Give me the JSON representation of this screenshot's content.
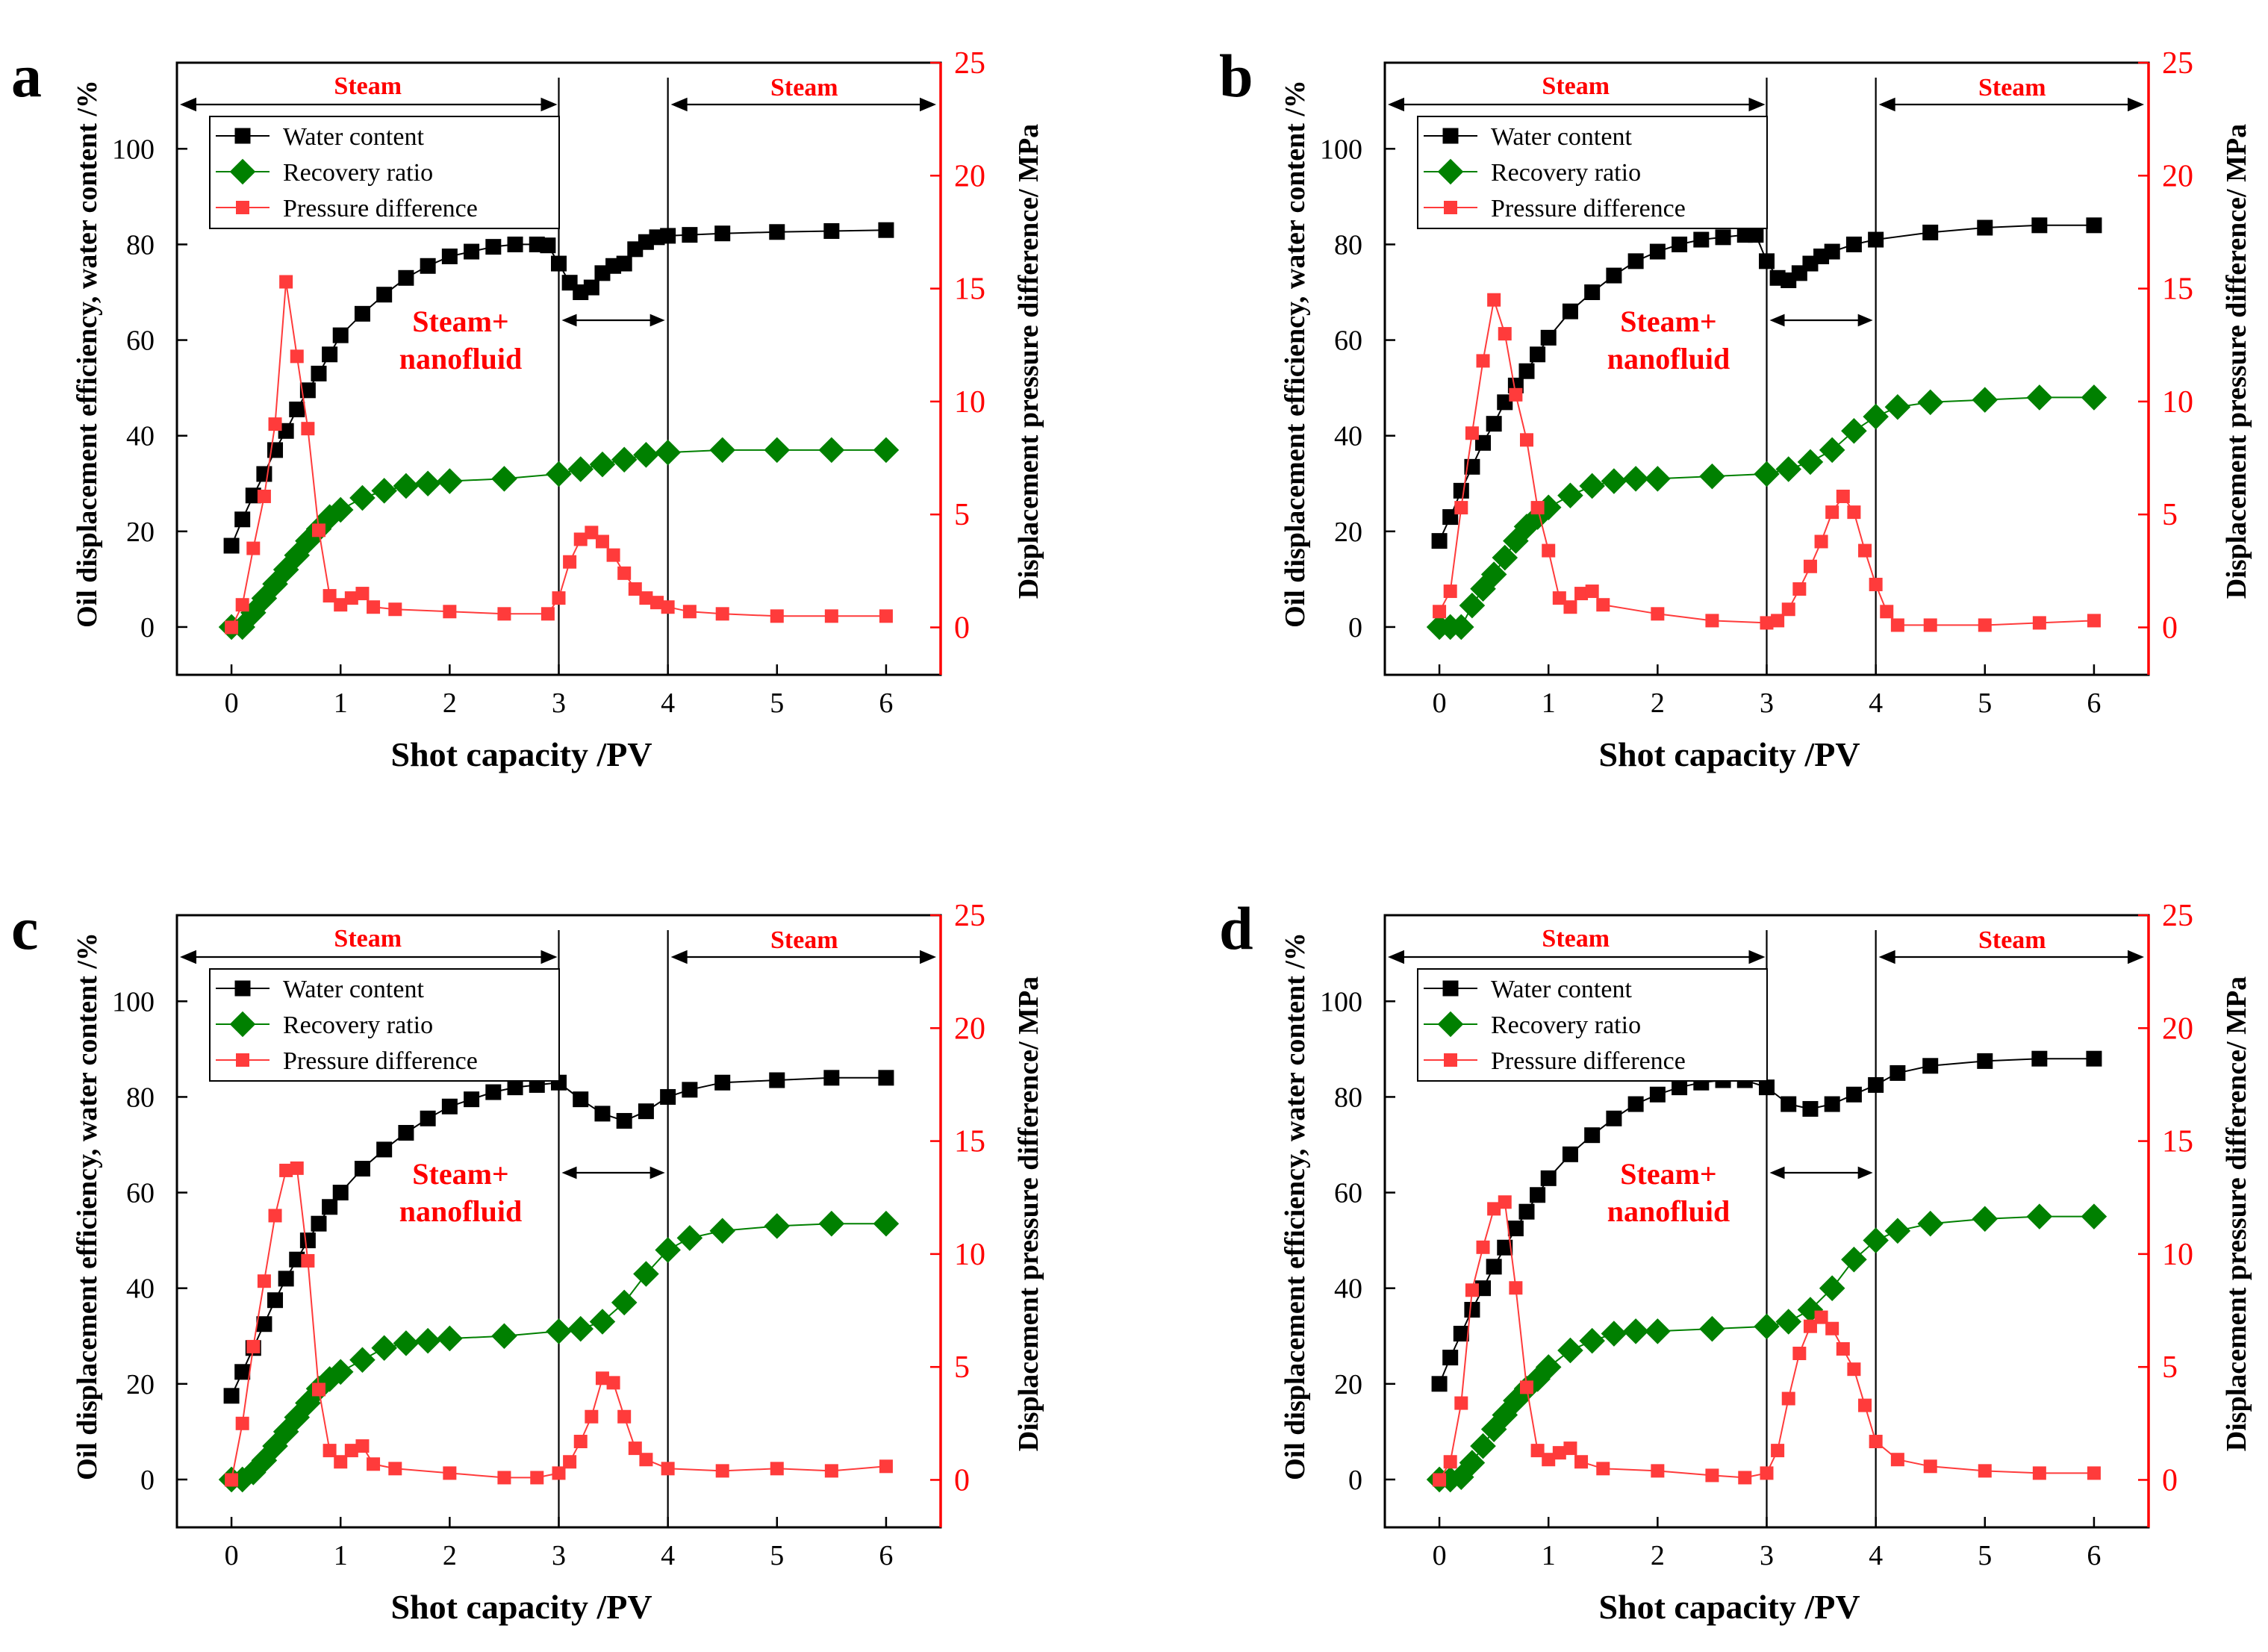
{
  "figure": {
    "x_label": "Shot capacity /PV",
    "y_left_label": "Oil displacement efficiency, water content /%",
    "y_right_label": "Displacement pressure difference/ MPa",
    "legend": [
      "Water content",
      "Recovery ratio",
      "Pressure difference"
    ],
    "annotation_steam": "Steam",
    "annotation_steam_nano": [
      "Steam+",
      "nanofluid"
    ],
    "colors": {
      "water": "#000000",
      "recovery": "#008000",
      "pressure": "#ff3b3b",
      "right_axis": "#ff0000",
      "annotation": "#ff0000"
    }
  },
  "chart_data": [
    {
      "type": "line",
      "panel": "a",
      "xlabel": "Shot capacity /PV",
      "ylabel": "Oil displacement efficiency, water content /%",
      "y2label": "Displacement pressure difference/ MPa",
      "xlim": [
        -0.5,
        6.5
      ],
      "ylim": [
        -10,
        118
      ],
      "y2lim": [
        -2.1,
        25
      ],
      "xticks": [
        0,
        1,
        2,
        3,
        4,
        5,
        6
      ],
      "yticks": [
        0,
        20,
        40,
        60,
        80,
        100
      ],
      "y2ticks": [
        0,
        5,
        10,
        15,
        20,
        25
      ],
      "injection_boundaries": [
        3,
        4
      ],
      "series": [
        {
          "name": "Water content",
          "axis": "left",
          "x": [
            0,
            0.1,
            0.2,
            0.3,
            0.4,
            0.5,
            0.6,
            0.7,
            0.8,
            0.9,
            1.0,
            1.2,
            1.4,
            1.6,
            1.8,
            2.0,
            2.2,
            2.4,
            2.6,
            2.8,
            2.9,
            3.0,
            3.1,
            3.2,
            3.3,
            3.4,
            3.5,
            3.6,
            3.7,
            3.8,
            3.9,
            4.0,
            4.2,
            4.5,
            5.0,
            5.5,
            6.0
          ],
          "values": [
            17,
            22.5,
            27.5,
            32,
            37,
            41,
            45.5,
            49.5,
            53,
            57,
            61,
            65.5,
            69.5,
            73,
            75.5,
            77.5,
            78.5,
            79.5,
            80,
            80,
            79.8,
            76,
            72,
            70,
            71,
            74,
            75.5,
            76,
            79,
            80.5,
            81.5,
            81.8,
            82,
            82.3,
            82.6,
            82.8,
            83
          ]
        },
        {
          "name": "Recovery ratio",
          "axis": "left",
          "x": [
            0,
            0.1,
            0.2,
            0.3,
            0.4,
            0.5,
            0.6,
            0.7,
            0.8,
            0.9,
            1.0,
            1.2,
            1.4,
            1.6,
            1.8,
            2.0,
            2.5,
            3.0,
            3.2,
            3.4,
            3.6,
            3.8,
            4.0,
            4.5,
            5.0,
            5.5,
            6.0
          ],
          "values": [
            0,
            0,
            3,
            6,
            9,
            12,
            15,
            18,
            20.5,
            23,
            24.5,
            27,
            28.5,
            29.5,
            30,
            30.5,
            31,
            32,
            33,
            34,
            35,
            36,
            36.5,
            37,
            37,
            37,
            37
          ]
        },
        {
          "name": "Pressure difference",
          "axis": "right",
          "x": [
            0,
            0.1,
            0.2,
            0.3,
            0.4,
            0.5,
            0.6,
            0.7,
            0.8,
            0.9,
            1.0,
            1.1,
            1.2,
            1.3,
            1.5,
            2.0,
            2.5,
            2.9,
            3.0,
            3.1,
            3.2,
            3.3,
            3.4,
            3.5,
            3.6,
            3.7,
            3.8,
            3.9,
            4.0,
            4.2,
            4.5,
            5.0,
            5.5,
            6.0
          ],
          "values": [
            0,
            1,
            3.5,
            5.8,
            9,
            15.3,
            12,
            8.8,
            4.3,
            1.4,
            1.0,
            1.3,
            1.5,
            0.9,
            0.8,
            0.7,
            0.6,
            0.6,
            1.3,
            2.9,
            3.9,
            4.2,
            3.8,
            3.2,
            2.4,
            1.7,
            1.3,
            1.1,
            0.9,
            0.7,
            0.6,
            0.5,
            0.5,
            0.5
          ]
        }
      ]
    },
    {
      "type": "line",
      "panel": "b",
      "xlabel": "Shot capacity /PV",
      "ylabel": "Oil displacement efficiency, water content /%",
      "y2label": "Displacement pressure difference/ MPa",
      "xlim": [
        -0.5,
        6.5
      ],
      "ylim": [
        -10,
        118
      ],
      "y2lim": [
        -2.1,
        25
      ],
      "xticks": [
        0,
        1,
        2,
        3,
        4,
        5,
        6
      ],
      "yticks": [
        0,
        20,
        40,
        60,
        80,
        100
      ],
      "y2ticks": [
        0,
        5,
        10,
        15,
        20,
        25
      ],
      "injection_boundaries": [
        3,
        4
      ],
      "series": [
        {
          "name": "Water content",
          "axis": "left",
          "x": [
            0,
            0.1,
            0.2,
            0.3,
            0.4,
            0.5,
            0.6,
            0.7,
            0.8,
            0.9,
            1.0,
            1.2,
            1.4,
            1.6,
            1.8,
            2.0,
            2.2,
            2.4,
            2.6,
            2.8,
            2.9,
            3.0,
            3.1,
            3.2,
            3.3,
            3.4,
            3.5,
            3.6,
            3.8,
            4.0,
            4.5,
            5.0,
            5.5,
            6.0
          ],
          "values": [
            18,
            23,
            28.5,
            33.5,
            38.5,
            42.5,
            47,
            50.5,
            53.5,
            57,
            60.5,
            66,
            70,
            73.5,
            76.5,
            78.5,
            80,
            81,
            81.5,
            82,
            82,
            76.5,
            73,
            72.5,
            74,
            76,
            77.5,
            78.5,
            80,
            81,
            82.5,
            83.5,
            84,
            84
          ]
        },
        {
          "name": "Recovery ratio",
          "axis": "left",
          "x": [
            0,
            0.1,
            0.2,
            0.3,
            0.4,
            0.5,
            0.6,
            0.7,
            0.8,
            0.9,
            1.0,
            1.2,
            1.4,
            1.6,
            1.8,
            2.0,
            2.5,
            3.0,
            3.2,
            3.4,
            3.6,
            3.8,
            4.0,
            4.2,
            4.5,
            5.0,
            5.5,
            6.0
          ],
          "values": [
            0,
            0,
            0,
            4.5,
            8,
            11,
            14.5,
            18,
            21,
            23,
            25,
            27.5,
            29.5,
            30.5,
            31,
            31,
            31.5,
            32,
            33,
            34.5,
            37,
            41,
            44,
            46,
            47,
            47.5,
            48,
            48
          ]
        },
        {
          "name": "Pressure difference",
          "axis": "right",
          "x": [
            0,
            0.1,
            0.2,
            0.3,
            0.4,
            0.5,
            0.6,
            0.7,
            0.8,
            0.9,
            1.0,
            1.1,
            1.2,
            1.3,
            1.4,
            1.5,
            2.0,
            2.5,
            3.0,
            3.1,
            3.2,
            3.3,
            3.4,
            3.5,
            3.6,
            3.7,
            3.8,
            3.9,
            4.0,
            4.1,
            4.2,
            4.5,
            5.0,
            5.5,
            6.0
          ],
          "values": [
            0.7,
            1.6,
            5.3,
            8.6,
            11.8,
            14.5,
            13,
            10.3,
            8.3,
            5.3,
            3.4,
            1.3,
            0.9,
            1.5,
            1.6,
            1.0,
            0.6,
            0.3,
            0.2,
            0.3,
            0.8,
            1.7,
            2.7,
            3.8,
            5.1,
            5.8,
            5.1,
            3.4,
            1.9,
            0.7,
            0.1,
            0.1,
            0.1,
            0.2,
            0.3
          ]
        }
      ]
    },
    {
      "type": "line",
      "panel": "c",
      "xlabel": "Shot capacity /PV",
      "ylabel": "Oil displacement efficiency, water content /%",
      "y2label": "Displacement pressure difference/ MPa",
      "xlim": [
        -0.5,
        6.5
      ],
      "ylim": [
        -10,
        118
      ],
      "y2lim": [
        -2.1,
        25
      ],
      "xticks": [
        0,
        1,
        2,
        3,
        4,
        5,
        6
      ],
      "yticks": [
        0,
        20,
        40,
        60,
        80,
        100
      ],
      "y2ticks": [
        0,
        5,
        10,
        15,
        20,
        25
      ],
      "injection_boundaries": [
        3,
        4
      ],
      "series": [
        {
          "name": "Water content",
          "axis": "left",
          "x": [
            0,
            0.1,
            0.2,
            0.3,
            0.4,
            0.5,
            0.6,
            0.7,
            0.8,
            0.9,
            1.0,
            1.2,
            1.4,
            1.6,
            1.8,
            2.0,
            2.2,
            2.4,
            2.6,
            2.8,
            3.0,
            3.2,
            3.4,
            3.6,
            3.8,
            4.0,
            4.2,
            4.5,
            5.0,
            5.5,
            6.0
          ],
          "values": [
            17.5,
            22.5,
            27.5,
            32.5,
            37.5,
            42,
            46,
            50,
            53.5,
            57,
            60,
            65,
            69,
            72.5,
            75.5,
            78,
            79.5,
            81,
            82,
            82.5,
            83,
            79.5,
            76.5,
            75,
            77,
            80,
            81.5,
            83,
            83.5,
            84,
            84
          ]
        },
        {
          "name": "Recovery ratio",
          "axis": "left",
          "x": [
            0,
            0.1,
            0.2,
            0.3,
            0.4,
            0.5,
            0.6,
            0.7,
            0.8,
            0.9,
            1.0,
            1.2,
            1.4,
            1.6,
            1.8,
            2.0,
            2.5,
            3.0,
            3.2,
            3.4,
            3.6,
            3.8,
            4.0,
            4.2,
            4.5,
            5.0,
            5.5,
            6.0
          ],
          "values": [
            0,
            0,
            1.5,
            4,
            7,
            10,
            13,
            16,
            19,
            21,
            22.5,
            25,
            27.5,
            28.5,
            29,
            29.5,
            30,
            31,
            31.5,
            33,
            37,
            43,
            48,
            50.5,
            52,
            53,
            53.5,
            53.5
          ]
        },
        {
          "name": "Pressure difference",
          "axis": "right",
          "x": [
            0,
            0.1,
            0.2,
            0.3,
            0.4,
            0.5,
            0.6,
            0.7,
            0.8,
            0.9,
            1.0,
            1.1,
            1.2,
            1.3,
            1.5,
            2.0,
            2.5,
            2.8,
            3.0,
            3.1,
            3.2,
            3.3,
            3.4,
            3.5,
            3.6,
            3.7,
            3.8,
            4.0,
            4.5,
            5.0,
            5.5,
            6.0
          ],
          "values": [
            0,
            2.5,
            5.9,
            8.8,
            11.7,
            13.7,
            13.8,
            9.7,
            4,
            1.3,
            0.8,
            1.3,
            1.5,
            0.7,
            0.5,
            0.3,
            0.1,
            0.1,
            0.3,
            0.8,
            1.7,
            2.8,
            4.5,
            4.3,
            2.8,
            1.4,
            0.9,
            0.5,
            0.4,
            0.5,
            0.4,
            0.6
          ]
        }
      ]
    },
    {
      "type": "line",
      "panel": "d",
      "xlabel": "Shot capacity /PV",
      "ylabel": "Oil displacement efficiency, water content /%",
      "y2label": "Displacement pressure difference/ MPa",
      "xlim": [
        -0.5,
        6.5
      ],
      "ylim": [
        -10,
        118
      ],
      "y2lim": [
        -2.1,
        25
      ],
      "xticks": [
        0,
        1,
        2,
        3,
        4,
        5,
        6
      ],
      "yticks": [
        0,
        20,
        40,
        60,
        80,
        100
      ],
      "y2ticks": [
        0,
        5,
        10,
        15,
        20,
        25
      ],
      "injection_boundaries": [
        3,
        4
      ],
      "series": [
        {
          "name": "Water content",
          "axis": "left",
          "x": [
            0,
            0.1,
            0.2,
            0.3,
            0.4,
            0.5,
            0.6,
            0.7,
            0.8,
            0.9,
            1.0,
            1.2,
            1.4,
            1.6,
            1.8,
            2.0,
            2.2,
            2.4,
            2.6,
            2.8,
            3.0,
            3.2,
            3.4,
            3.6,
            3.8,
            4.0,
            4.2,
            4.5,
            5.0,
            5.5,
            6.0
          ],
          "values": [
            20,
            25.5,
            30.5,
            35.5,
            40,
            44.5,
            48.5,
            52.5,
            56,
            59.5,
            63,
            68,
            72,
            75.5,
            78.5,
            80.5,
            82,
            83,
            83.5,
            83.5,
            82,
            78.5,
            77.5,
            78.5,
            80.5,
            82.5,
            85,
            86.5,
            87.5,
            88,
            88
          ]
        },
        {
          "name": "Recovery ratio",
          "axis": "left",
          "x": [
            0,
            0.1,
            0.2,
            0.3,
            0.4,
            0.5,
            0.6,
            0.7,
            0.8,
            0.9,
            1.0,
            1.2,
            1.4,
            1.6,
            1.8,
            2.0,
            2.5,
            3.0,
            3.2,
            3.4,
            3.6,
            3.8,
            4.0,
            4.2,
            4.5,
            5.0,
            5.5,
            6.0
          ],
          "values": [
            0,
            0,
            0.5,
            3.5,
            7,
            10.5,
            13.5,
            16.5,
            19,
            21,
            23.5,
            27,
            29,
            30.5,
            31,
            31,
            31.5,
            32,
            33,
            35.5,
            40,
            46,
            50,
            52,
            53.5,
            54.5,
            55,
            55
          ]
        },
        {
          "name": "Pressure difference",
          "axis": "right",
          "x": [
            0,
            0.1,
            0.2,
            0.3,
            0.4,
            0.5,
            0.6,
            0.7,
            0.8,
            0.9,
            1.0,
            1.1,
            1.2,
            1.3,
            1.5,
            2.0,
            2.5,
            2.8,
            3.0,
            3.1,
            3.2,
            3.3,
            3.4,
            3.5,
            3.6,
            3.7,
            3.8,
            3.9,
            4.0,
            4.2,
            4.5,
            5.0,
            5.5,
            6.0
          ],
          "values": [
            0,
            0.8,
            3.4,
            8.4,
            10.3,
            12,
            12.3,
            8.5,
            4.1,
            1.3,
            0.9,
            1.2,
            1.4,
            0.8,
            0.5,
            0.4,
            0.2,
            0.1,
            0.3,
            1.3,
            3.6,
            5.6,
            6.8,
            7.2,
            6.7,
            5.8,
            4.9,
            3.3,
            1.7,
            0.9,
            0.6,
            0.4,
            0.3,
            0.3
          ]
        }
      ]
    }
  ]
}
